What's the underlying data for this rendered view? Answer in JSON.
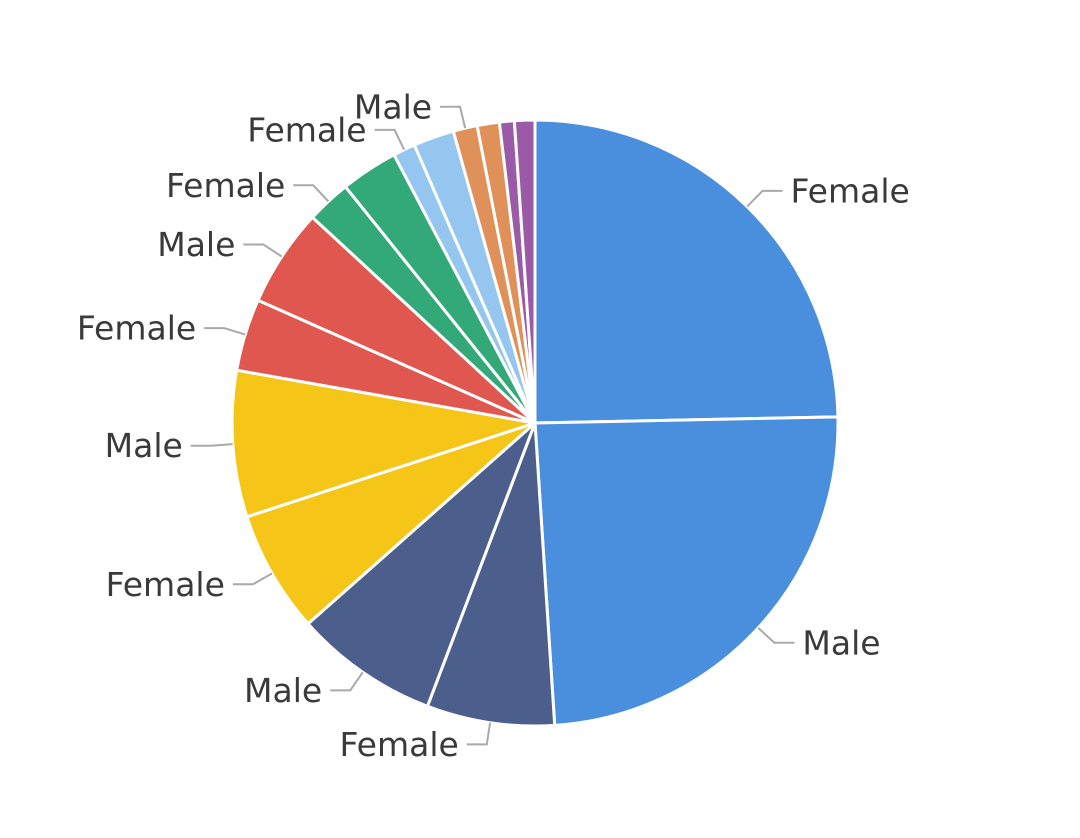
{
  "chart_data": {
    "type": "pie",
    "start_angle_deg": 0,
    "direction": "clockwise",
    "slices": [
      {
        "label": "Female",
        "value": 25.0,
        "color": "#4a8ede"
      },
      {
        "label": "Male",
        "value": 24.6,
        "color": "#4a8ede"
      },
      {
        "label": "Female",
        "value": 6.9,
        "color": "#4b5e8c"
      },
      {
        "label": "Male",
        "value": 7.8,
        "color": "#4b5e8c"
      },
      {
        "label": "Female",
        "value": 6.6,
        "color": "#f5c518"
      },
      {
        "label": "Male",
        "value": 7.9,
        "color": "#f5c518"
      },
      {
        "label": "Female",
        "value": 3.9,
        "color": "#e0574f"
      },
      {
        "label": "Male",
        "value": 5.3,
        "color": "#e0574f"
      },
      {
        "label": "Female",
        "value": 2.4,
        "color": "#33a97a"
      },
      {
        "label": "",
        "value": 3.1,
        "color": "#33a97a"
      },
      {
        "label": "Female",
        "value": 1.2,
        "color": "#95c6f0"
      },
      {
        "label": "",
        "value": 2.2,
        "color": "#95c6f0"
      },
      {
        "label": "Male",
        "value": 1.3,
        "color": "#e0915a"
      },
      {
        "label": "",
        "value": 1.2,
        "color": "#e0915a"
      },
      {
        "label": "",
        "value": 0.8,
        "color": "#9b5aa8"
      },
      {
        "label": "",
        "value": 1.1,
        "color": "#9b5aa8"
      }
    ]
  }
}
